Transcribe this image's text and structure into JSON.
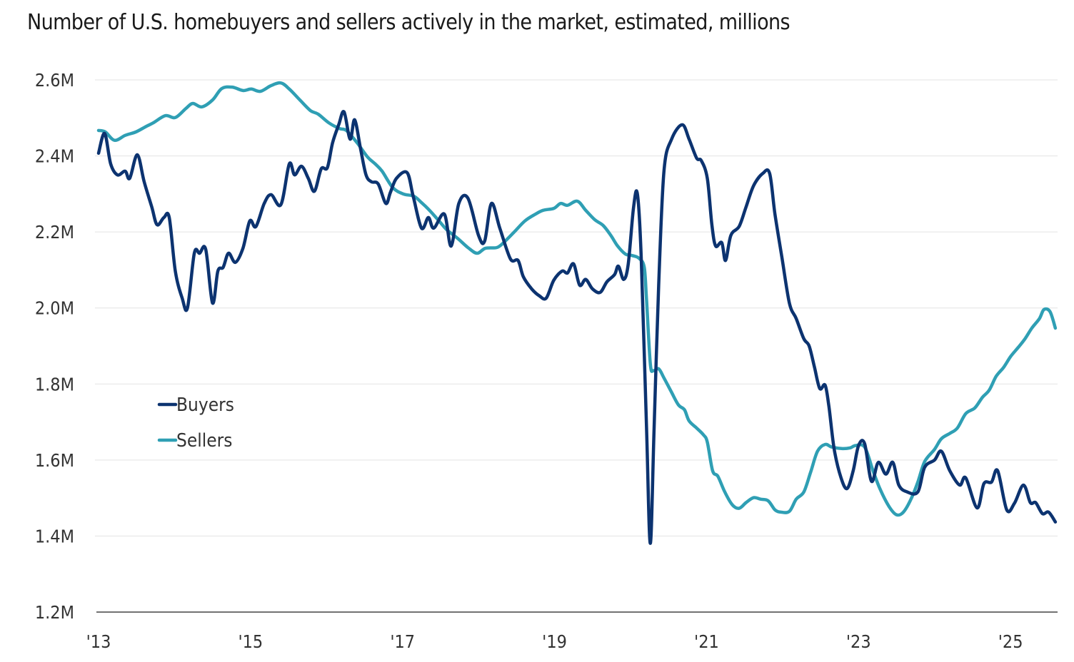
{
  "chart_data": {
    "type": "line",
    "title": "Number of U.S. homebuyers and sellers actively in the market, estimated, millions",
    "xlabel": "",
    "ylabel": "",
    "xlim": [
      2013,
      2025.6
    ],
    "ylim": [
      1.2,
      2.6
    ],
    "grid": true,
    "legend_position": "left-middle",
    "y_ticks": [
      {
        "v": 2.6,
        "label": "2.6M"
      },
      {
        "v": 2.4,
        "label": "2.4M"
      },
      {
        "v": 2.2,
        "label": "2.2M"
      },
      {
        "v": 2.0,
        "label": "2.0M"
      },
      {
        "v": 1.8,
        "label": "1.8M"
      },
      {
        "v": 1.6,
        "label": "1.6M"
      },
      {
        "v": 1.4,
        "label": "1.4M"
      },
      {
        "v": 1.2,
        "label": "1.2M"
      }
    ],
    "x_ticks": [
      {
        "v": 2013,
        "label": "'13"
      },
      {
        "v": 2015,
        "label": "'15"
      },
      {
        "v": 2017,
        "label": "'17"
      },
      {
        "v": 2019,
        "label": "'19"
      },
      {
        "v": 2021,
        "label": "'21"
      },
      {
        "v": 2023,
        "label": "'23"
      },
      {
        "v": 2025,
        "label": "'25"
      }
    ],
    "series": [
      {
        "name": "Buyers",
        "color": "#0c3370",
        "points": [
          [
            2013.0,
            2.407
          ],
          [
            2013.08,
            2.459
          ],
          [
            2013.16,
            2.379
          ],
          [
            2013.25,
            2.35
          ],
          [
            2013.35,
            2.36
          ],
          [
            2013.41,
            2.341
          ],
          [
            2013.51,
            2.403
          ],
          [
            2013.6,
            2.332
          ],
          [
            2013.7,
            2.266
          ],
          [
            2013.77,
            2.219
          ],
          [
            2013.86,
            2.238
          ],
          [
            2013.93,
            2.238
          ],
          [
            2014.01,
            2.097
          ],
          [
            2014.1,
            2.026
          ],
          [
            2014.17,
            2.0
          ],
          [
            2014.26,
            2.144
          ],
          [
            2014.33,
            2.144
          ],
          [
            2014.41,
            2.154
          ],
          [
            2014.5,
            2.013
          ],
          [
            2014.57,
            2.097
          ],
          [
            2014.64,
            2.107
          ],
          [
            2014.71,
            2.144
          ],
          [
            2014.8,
            2.12
          ],
          [
            2014.9,
            2.157
          ],
          [
            2014.99,
            2.229
          ],
          [
            2015.07,
            2.214
          ],
          [
            2015.18,
            2.275
          ],
          [
            2015.27,
            2.298
          ],
          [
            2015.4,
            2.272
          ],
          [
            2015.51,
            2.379
          ],
          [
            2015.58,
            2.35
          ],
          [
            2015.67,
            2.373
          ],
          [
            2015.76,
            2.341
          ],
          [
            2015.84,
            2.307
          ],
          [
            2015.93,
            2.366
          ],
          [
            2016.01,
            2.369
          ],
          [
            2016.08,
            2.435
          ],
          [
            2016.16,
            2.482
          ],
          [
            2016.23,
            2.516
          ],
          [
            2016.31,
            2.444
          ],
          [
            2016.37,
            2.495
          ],
          [
            2016.45,
            2.416
          ],
          [
            2016.52,
            2.35
          ],
          [
            2016.59,
            2.332
          ],
          [
            2016.68,
            2.326
          ],
          [
            2016.78,
            2.275
          ],
          [
            2016.84,
            2.304
          ],
          [
            2016.92,
            2.341
          ],
          [
            2017.06,
            2.356
          ],
          [
            2017.14,
            2.294
          ],
          [
            2017.25,
            2.21
          ],
          [
            2017.34,
            2.238
          ],
          [
            2017.41,
            2.21
          ],
          [
            2017.55,
            2.247
          ],
          [
            2017.64,
            2.163
          ],
          [
            2017.74,
            2.275
          ],
          [
            2017.86,
            2.289
          ],
          [
            2018.0,
            2.191
          ],
          [
            2018.08,
            2.176
          ],
          [
            2018.17,
            2.275
          ],
          [
            2018.28,
            2.21
          ],
          [
            2018.42,
            2.129
          ],
          [
            2018.52,
            2.125
          ],
          [
            2018.59,
            2.082
          ],
          [
            2018.7,
            2.05
          ],
          [
            2018.8,
            2.032
          ],
          [
            2018.89,
            2.026
          ],
          [
            2018.99,
            2.073
          ],
          [
            2019.1,
            2.097
          ],
          [
            2019.17,
            2.092
          ],
          [
            2019.25,
            2.116
          ],
          [
            2019.33,
            2.06
          ],
          [
            2019.41,
            2.075
          ],
          [
            2019.5,
            2.05
          ],
          [
            2019.6,
            2.041
          ],
          [
            2019.69,
            2.069
          ],
          [
            2019.79,
            2.088
          ],
          [
            2019.84,
            2.11
          ],
          [
            2019.91,
            2.075
          ],
          [
            2019.97,
            2.116
          ],
          [
            2020.04,
            2.266
          ],
          [
            2020.09,
            2.3
          ],
          [
            2020.14,
            2.135
          ],
          [
            2020.21,
            1.684
          ],
          [
            2020.26,
            1.381
          ],
          [
            2020.31,
            1.684
          ],
          [
            2020.37,
            2.06
          ],
          [
            2020.44,
            2.36
          ],
          [
            2020.54,
            2.444
          ],
          [
            2020.68,
            2.482
          ],
          [
            2020.77,
            2.444
          ],
          [
            2020.87,
            2.394
          ],
          [
            2020.93,
            2.388
          ],
          [
            2021.01,
            2.341
          ],
          [
            2021.07,
            2.219
          ],
          [
            2021.12,
            2.163
          ],
          [
            2021.2,
            2.172
          ],
          [
            2021.25,
            2.125
          ],
          [
            2021.32,
            2.191
          ],
          [
            2021.43,
            2.215
          ],
          [
            2021.52,
            2.266
          ],
          [
            2021.62,
            2.322
          ],
          [
            2021.74,
            2.354
          ],
          [
            2021.83,
            2.354
          ],
          [
            2021.9,
            2.247
          ],
          [
            2021.99,
            2.135
          ],
          [
            2022.09,
            2.013
          ],
          [
            2022.18,
            1.972
          ],
          [
            2022.28,
            1.919
          ],
          [
            2022.35,
            1.9
          ],
          [
            2022.42,
            1.844
          ],
          [
            2022.49,
            1.788
          ],
          [
            2022.56,
            1.797
          ],
          [
            2022.61,
            1.741
          ],
          [
            2022.68,
            1.628
          ],
          [
            2022.77,
            1.553
          ],
          [
            2022.85,
            1.525
          ],
          [
            2022.93,
            1.572
          ],
          [
            2023.0,
            1.638
          ],
          [
            2023.08,
            1.643
          ],
          [
            2023.17,
            1.544
          ],
          [
            2023.26,
            1.594
          ],
          [
            2023.36,
            1.563
          ],
          [
            2023.45,
            1.594
          ],
          [
            2023.53,
            1.534
          ],
          [
            2023.64,
            1.516
          ],
          [
            2023.78,
            1.516
          ],
          [
            2023.87,
            1.581
          ],
          [
            2024.0,
            1.6
          ],
          [
            2024.09,
            1.623
          ],
          [
            2024.2,
            1.572
          ],
          [
            2024.33,
            1.534
          ],
          [
            2024.41,
            1.553
          ],
          [
            2024.56,
            1.474
          ],
          [
            2024.65,
            1.538
          ],
          [
            2024.75,
            1.542
          ],
          [
            2024.83,
            1.572
          ],
          [
            2024.95,
            1.469
          ],
          [
            2025.05,
            1.486
          ],
          [
            2025.17,
            1.534
          ],
          [
            2025.26,
            1.488
          ],
          [
            2025.33,
            1.488
          ],
          [
            2025.42,
            1.459
          ],
          [
            2025.5,
            1.463
          ],
          [
            2025.59,
            1.437
          ]
        ]
      },
      {
        "name": "Sellers",
        "color": "#2f9fb4",
        "points": [
          [
            2013.0,
            2.467
          ],
          [
            2013.09,
            2.463
          ],
          [
            2013.21,
            2.441
          ],
          [
            2013.35,
            2.454
          ],
          [
            2013.49,
            2.463
          ],
          [
            2013.63,
            2.478
          ],
          [
            2013.72,
            2.487
          ],
          [
            2013.88,
            2.506
          ],
          [
            2014.01,
            2.501
          ],
          [
            2014.15,
            2.525
          ],
          [
            2014.24,
            2.538
          ],
          [
            2014.36,
            2.529
          ],
          [
            2014.5,
            2.547
          ],
          [
            2014.62,
            2.577
          ],
          [
            2014.76,
            2.581
          ],
          [
            2014.9,
            2.572
          ],
          [
            2015.01,
            2.576
          ],
          [
            2015.13,
            2.57
          ],
          [
            2015.27,
            2.585
          ],
          [
            2015.4,
            2.592
          ],
          [
            2015.51,
            2.576
          ],
          [
            2015.65,
            2.547
          ],
          [
            2015.79,
            2.519
          ],
          [
            2015.89,
            2.51
          ],
          [
            2016.03,
            2.487
          ],
          [
            2016.17,
            2.472
          ],
          [
            2016.26,
            2.467
          ],
          [
            2016.4,
            2.435
          ],
          [
            2016.54,
            2.397
          ],
          [
            2016.64,
            2.379
          ],
          [
            2016.73,
            2.36
          ],
          [
            2016.87,
            2.317
          ],
          [
            2017.01,
            2.3
          ],
          [
            2017.15,
            2.294
          ],
          [
            2017.25,
            2.277
          ],
          [
            2017.34,
            2.26
          ],
          [
            2017.48,
            2.229
          ],
          [
            2017.58,
            2.206
          ],
          [
            2017.72,
            2.184
          ],
          [
            2017.86,
            2.159
          ],
          [
            2017.98,
            2.144
          ],
          [
            2018.09,
            2.157
          ],
          [
            2018.24,
            2.159
          ],
          [
            2018.33,
            2.172
          ],
          [
            2018.47,
            2.2
          ],
          [
            2018.61,
            2.229
          ],
          [
            2018.75,
            2.247
          ],
          [
            2018.85,
            2.257
          ],
          [
            2018.99,
            2.262
          ],
          [
            2019.08,
            2.275
          ],
          [
            2019.17,
            2.27
          ],
          [
            2019.3,
            2.281
          ],
          [
            2019.41,
            2.257
          ],
          [
            2019.53,
            2.232
          ],
          [
            2019.64,
            2.217
          ],
          [
            2019.74,
            2.191
          ],
          [
            2019.83,
            2.163
          ],
          [
            2019.93,
            2.142
          ],
          [
            2020.02,
            2.138
          ],
          [
            2020.11,
            2.131
          ],
          [
            2020.18,
            2.107
          ],
          [
            2020.21,
            2.022
          ],
          [
            2020.26,
            1.853
          ],
          [
            2020.3,
            1.835
          ],
          [
            2020.37,
            1.84
          ],
          [
            2020.44,
            1.816
          ],
          [
            2020.54,
            1.778
          ],
          [
            2020.63,
            1.745
          ],
          [
            2020.71,
            1.732
          ],
          [
            2020.77,
            1.703
          ],
          [
            2020.87,
            1.684
          ],
          [
            2020.96,
            1.666
          ],
          [
            2021.01,
            1.647
          ],
          [
            2021.08,
            1.572
          ],
          [
            2021.15,
            1.557
          ],
          [
            2021.24,
            1.516
          ],
          [
            2021.34,
            1.482
          ],
          [
            2021.43,
            1.473
          ],
          [
            2021.52,
            1.488
          ],
          [
            2021.62,
            1.501
          ],
          [
            2021.71,
            1.497
          ],
          [
            2021.81,
            1.493
          ],
          [
            2021.9,
            1.469
          ],
          [
            2021.98,
            1.463
          ],
          [
            2022.09,
            1.465
          ],
          [
            2022.18,
            1.497
          ],
          [
            2022.28,
            1.516
          ],
          [
            2022.37,
            1.568
          ],
          [
            2022.46,
            1.623
          ],
          [
            2022.56,
            1.641
          ],
          [
            2022.65,
            1.634
          ],
          [
            2022.79,
            1.63
          ],
          [
            2022.89,
            1.632
          ],
          [
            2022.96,
            1.638
          ],
          [
            2023.08,
            1.634
          ],
          [
            2023.19,
            1.572
          ],
          [
            2023.28,
            1.525
          ],
          [
            2023.4,
            1.478
          ],
          [
            2023.5,
            1.456
          ],
          [
            2023.59,
            1.463
          ],
          [
            2023.69,
            1.497
          ],
          [
            2023.78,
            1.542
          ],
          [
            2023.87,
            1.596
          ],
          [
            2024.0,
            1.628
          ],
          [
            2024.09,
            1.656
          ],
          [
            2024.2,
            1.67
          ],
          [
            2024.3,
            1.684
          ],
          [
            2024.41,
            1.722
          ],
          [
            2024.53,
            1.737
          ],
          [
            2024.63,
            1.765
          ],
          [
            2024.72,
            1.784
          ],
          [
            2024.81,
            1.82
          ],
          [
            2024.91,
            1.844
          ],
          [
            2025.0,
            1.872
          ],
          [
            2025.1,
            1.896
          ],
          [
            2025.19,
            1.919
          ],
          [
            2025.28,
            1.947
          ],
          [
            2025.38,
            1.972
          ],
          [
            2025.44,
            1.996
          ],
          [
            2025.52,
            1.99
          ],
          [
            2025.59,
            1.947
          ]
        ]
      }
    ]
  }
}
